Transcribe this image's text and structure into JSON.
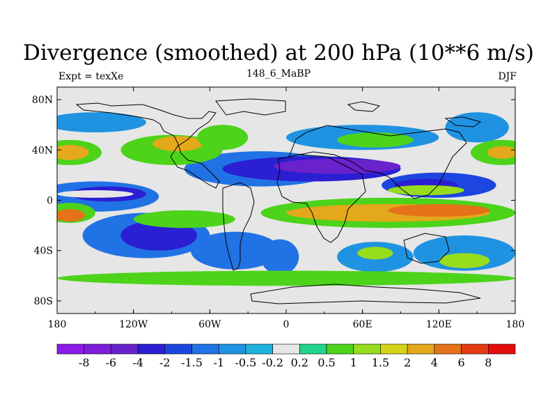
{
  "title": "Divergence (smoothed) at 200 hPa (10**6 m/s)",
  "subtitle_left": "Expt = texXe",
  "subtitle_center": "148_6_MaBP",
  "subtitle_right": "DJF",
  "chart_data": {
    "type": "heatmap",
    "title": "Divergence (smoothed) at 200 hPa (10**6 m/s)",
    "units": "10**6 m/s",
    "level": "200 hPa",
    "season": "DJF",
    "experiment": "texXe",
    "case": "148_6_MaBP",
    "x_range": [
      -180,
      180
    ],
    "y_range": [
      -90,
      90
    ],
    "x_ticks": [
      {
        "value": -180,
        "label": "180"
      },
      {
        "value": -120,
        "label": "120W"
      },
      {
        "value": -60,
        "label": "60W"
      },
      {
        "value": 0,
        "label": "0"
      },
      {
        "value": 60,
        "label": "60E"
      },
      {
        "value": 120,
        "label": "120E"
      },
      {
        "value": 180,
        "label": "180"
      }
    ],
    "y_ticks": [
      {
        "value": 80,
        "label": "80N"
      },
      {
        "value": 40,
        "label": "40N"
      },
      {
        "value": 0,
        "label": "0"
      },
      {
        "value": -40,
        "label": "40S"
      },
      {
        "value": -80,
        "label": "80S"
      }
    ],
    "contour_levels": [
      "-8",
      "-6",
      "-4",
      "-2",
      "-1.5",
      "-1",
      "-0.5",
      "-0.2",
      "0.2",
      "0.5",
      "1",
      "1.5",
      "2",
      "4",
      "6",
      "8"
    ],
    "colors": [
      "#8b1ae6",
      "#7b1ed8",
      "#6a22cc",
      "#2a1fd2",
      "#1d46e0",
      "#2172e4",
      "#1f93e1",
      "#1cb2dc",
      "#e6e6e6",
      "#22d48c",
      "#4cd31a",
      "#98dc1e",
      "#d6d41a",
      "#e3a81c",
      "#e37218",
      "#e63a10",
      "#e60d0d"
    ],
    "neutral_color": "#e6e6e6",
    "regions": [
      {
        "lon": -150,
        "lat": 3,
        "rx": 50,
        "ry": 12,
        "level": 5
      },
      {
        "lon": -140,
        "lat": 5,
        "rx": 30,
        "ry": 6,
        "level": 3
      },
      {
        "lon": -150,
        "lat": 5,
        "rx": 30,
        "ry": 3,
        "level": 8
      },
      {
        "lon": -20,
        "lat": 25,
        "rx": 60,
        "ry": 14,
        "level": 5
      },
      {
        "lon": 20,
        "lat": 25,
        "rx": 70,
        "ry": 10,
        "level": 3
      },
      {
        "lon": 40,
        "lat": 27,
        "rx": 50,
        "ry": 6,
        "level": 2
      },
      {
        "lon": 120,
        "lat": 12,
        "rx": 45,
        "ry": 10,
        "level": 4
      },
      {
        "lon": 110,
        "lat": 12,
        "rx": 25,
        "ry": 5,
        "level": 3
      },
      {
        "lon": -110,
        "lat": -28,
        "rx": 50,
        "ry": 18,
        "level": 5
      },
      {
        "lon": -100,
        "lat": -28,
        "rx": 30,
        "ry": 12,
        "level": 3
      },
      {
        "lon": -40,
        "lat": -40,
        "rx": 35,
        "ry": 15,
        "level": 5
      },
      {
        "lon": -5,
        "lat": -45,
        "rx": 15,
        "ry": 14,
        "level": 5
      },
      {
        "lon": 70,
        "lat": -45,
        "rx": 30,
        "ry": 12,
        "level": 6
      },
      {
        "lon": 140,
        "lat": -42,
        "rx": 40,
        "ry": 14,
        "level": 6
      },
      {
        "lon": -150,
        "lat": 62,
        "rx": 40,
        "ry": 8,
        "level": 6
      },
      {
        "lon": 60,
        "lat": 50,
        "rx": 60,
        "ry": 10,
        "level": 6
      },
      {
        "lon": 150,
        "lat": 58,
        "rx": 25,
        "ry": 12,
        "level": 6
      },
      {
        "lon": -170,
        "lat": 38,
        "rx": 25,
        "ry": 10,
        "level": 10
      },
      {
        "lon": -170,
        "lat": 38,
        "rx": 15,
        "ry": 6,
        "level": 13
      },
      {
        "lon": 170,
        "lat": 38,
        "rx": 25,
        "ry": 10,
        "level": 10
      },
      {
        "lon": 170,
        "lat": 38,
        "rx": 12,
        "ry": 5,
        "level": 13
      },
      {
        "lon": -90,
        "lat": 40,
        "rx": 40,
        "ry": 12,
        "level": 10
      },
      {
        "lon": -85,
        "lat": 45,
        "rx": 20,
        "ry": 6,
        "level": 13
      },
      {
        "lon": -50,
        "lat": 50,
        "rx": 20,
        "ry": 10,
        "level": 10
      },
      {
        "lon": 70,
        "lat": 48,
        "rx": 30,
        "ry": 6,
        "level": 10
      },
      {
        "lon": -170,
        "lat": -10,
        "rx": 20,
        "ry": 8,
        "level": 10
      },
      {
        "lon": -170,
        "lat": -12,
        "rx": 12,
        "ry": 5,
        "level": 14
      },
      {
        "lon": -80,
        "lat": -15,
        "rx": 40,
        "ry": 7,
        "level": 10
      },
      {
        "lon": 80,
        "lat": -10,
        "rx": 100,
        "ry": 12,
        "level": 10
      },
      {
        "lon": 80,
        "lat": -10,
        "rx": 80,
        "ry": 7,
        "level": 13
      },
      {
        "lon": 120,
        "lat": -8,
        "rx": 40,
        "ry": 5,
        "level": 14
      },
      {
        "lon": 0,
        "lat": -62,
        "rx": 180,
        "ry": 6,
        "level": 10
      },
      {
        "lon": 70,
        "lat": -42,
        "rx": 14,
        "ry": 5,
        "level": 11
      },
      {
        "lon": 140,
        "lat": -48,
        "rx": 20,
        "ry": 6,
        "level": 11
      },
      {
        "lon": 110,
        "lat": 8,
        "rx": 30,
        "ry": 4,
        "level": 11
      }
    ]
  }
}
